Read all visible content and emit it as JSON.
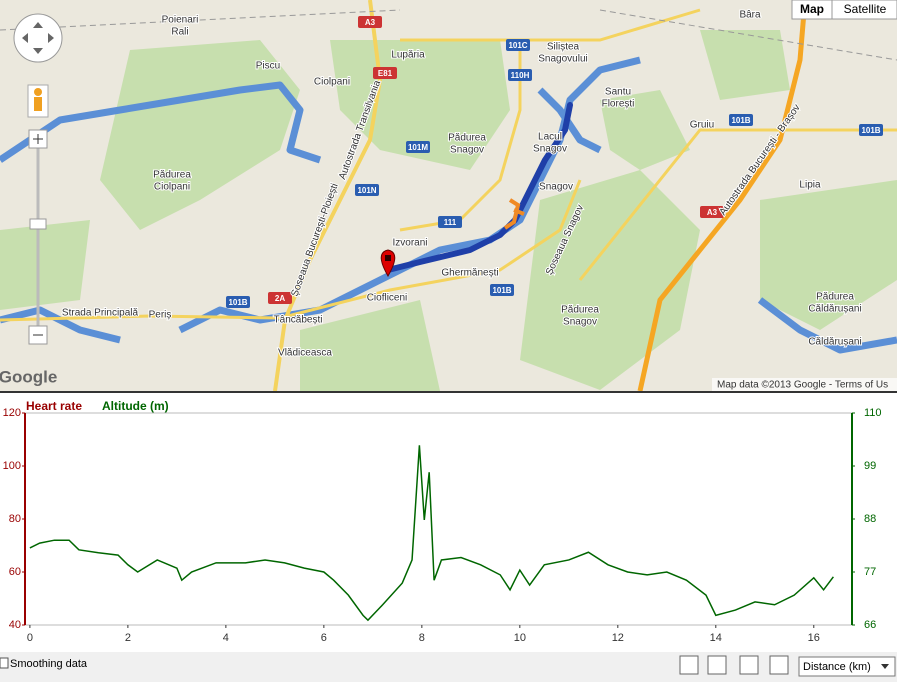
{
  "map": {
    "map_type_buttons": [
      "Map",
      "Satellite"
    ],
    "labels": [
      "Poienari",
      "Rali",
      "Lupăria",
      "Siliștea",
      "Snagovului",
      "Bâra",
      "Piscu",
      "Ciolpani",
      "Santu",
      "Florești",
      "Gruiu",
      "Pădurea",
      "Snagov",
      "Lacul",
      "Snagov",
      "Snagov",
      "Lipia",
      "Pădurea",
      "Ciolpani",
      "Izvorani",
      "Ghermănești",
      "Ciofliceni",
      "Periș",
      "Tâncăbești",
      "Vlădiceasca",
      "Pădurea",
      "Snagov",
      "Pădurea",
      "Căldărușani",
      "Căldărușani",
      "Strada Principală"
    ],
    "roads": [
      "A3",
      "E81",
      "101C",
      "110H",
      "101M",
      "101N",
      "111",
      "101B",
      "101B",
      "2A",
      "101B",
      "101B",
      "A3"
    ],
    "road_names": [
      "Autostrada Transilvania",
      "Șoseaua București-Ploiești",
      "Șoseaua Snagov",
      "Autostrada București - Brașov"
    ],
    "logo": "Google",
    "attribution": "Map data ©2013 Google - Terms of Us"
  },
  "chart_data": {
    "type": "line",
    "left_axis_label": "Heart rate",
    "right_axis_label": "Altitude (m)",
    "xlim": [
      -0.1,
      16.78
    ],
    "xticks": [
      0,
      2,
      4,
      6,
      8,
      10,
      12,
      14,
      16
    ],
    "ylim": [
      40,
      120
    ],
    "yticks": [
      40,
      60,
      80,
      100,
      120
    ],
    "y2lim": [
      66,
      110
    ],
    "y2ticks": [
      66,
      77,
      88,
      99,
      110
    ],
    "series": [
      {
        "name": "Altitude (m)",
        "color": "#006600",
        "axis": "y2",
        "x": [
          0,
          0.2,
          0.5,
          0.8,
          1.0,
          1.4,
          1.8,
          2.0,
          2.2,
          2.6,
          3.0,
          3.1,
          3.3,
          3.8,
          4.4,
          4.8,
          5.2,
          5.6,
          6.0,
          6.2,
          6.5,
          6.8,
          6.9,
          7.2,
          7.6,
          7.8,
          7.95,
          8.05,
          8.15,
          8.25,
          8.4,
          8.8,
          9.2,
          9.6,
          9.8,
          10.0,
          10.2,
          10.5,
          11.0,
          11.4,
          11.8,
          12.2,
          12.6,
          13.0,
          13.4,
          13.8,
          14.0,
          14.4,
          14.8,
          15.2,
          15.6,
          16.0,
          16.2,
          16.4
        ],
        "values": [
          82,
          83,
          83.6,
          83.6,
          81.6,
          81,
          80.5,
          78.5,
          77,
          79.5,
          77.8,
          75.3,
          77,
          78.9,
          78.9,
          79.5,
          78.9,
          77.8,
          77,
          75.3,
          72.2,
          68,
          67,
          70.2,
          74.7,
          79.5,
          103.3,
          87.8,
          97.7,
          75.3,
          79.5,
          80,
          78.5,
          76.4,
          73.3,
          77.4,
          74.3,
          78.5,
          79.5,
          81.1,
          78.5,
          77,
          76.4,
          77,
          75.3,
          72.2,
          68,
          69.1,
          70.8,
          70.2,
          72.2,
          75.8,
          73.3,
          76
        ]
      }
    ]
  },
  "controls": {
    "smoothing": "Smoothing data",
    "x_axis_select": "Distance (km)"
  }
}
